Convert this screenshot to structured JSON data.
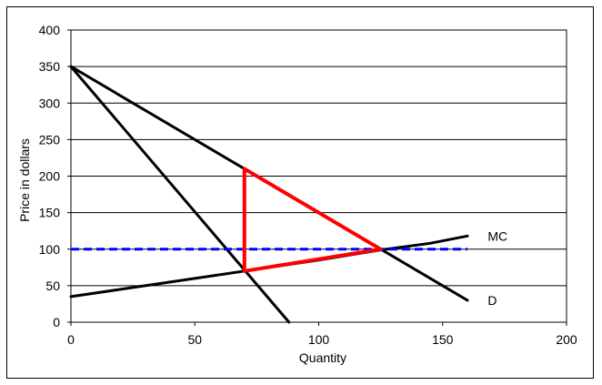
{
  "chart_data": {
    "type": "line",
    "title": "",
    "xlabel": "Quantity",
    "ylabel": "Price in dollars",
    "xlim": [
      0,
      200
    ],
    "ylim": [
      0,
      400
    ],
    "xticks": [
      0,
      50,
      100,
      150,
      200
    ],
    "yticks": [
      0,
      50,
      100,
      150,
      200,
      250,
      300,
      350,
      400
    ],
    "grid": "horizontal",
    "series": [
      {
        "name": "D",
        "color": "#000000",
        "style": "solid",
        "points": [
          [
            0,
            350
          ],
          [
            160,
            30
          ]
        ]
      },
      {
        "name": "",
        "color": "#000000",
        "style": "solid",
        "points": [
          [
            0,
            350
          ],
          [
            88,
            0
          ]
        ]
      },
      {
        "name": "MC",
        "color": "#000000",
        "style": "solid",
        "points": [
          [
            0,
            35
          ],
          [
            20,
            45
          ],
          [
            50,
            60
          ],
          [
            70,
            70
          ],
          [
            100,
            85
          ],
          [
            125,
            99
          ],
          [
            145,
            108
          ],
          [
            160,
            118
          ]
        ]
      },
      {
        "name": "",
        "color": "#0000ff",
        "style": "dashed",
        "points": [
          [
            0,
            100
          ],
          [
            160,
            100
          ]
        ]
      },
      {
        "name": "",
        "color": "#ff0000",
        "style": "solid",
        "closed": true,
        "points": [
          [
            70,
            210
          ],
          [
            70,
            70
          ],
          [
            125,
            100
          ]
        ]
      }
    ],
    "labels": [
      {
        "text": "MC",
        "x": 166,
        "y": 118
      },
      {
        "text": "D",
        "x": 166,
        "y": 30
      }
    ]
  }
}
